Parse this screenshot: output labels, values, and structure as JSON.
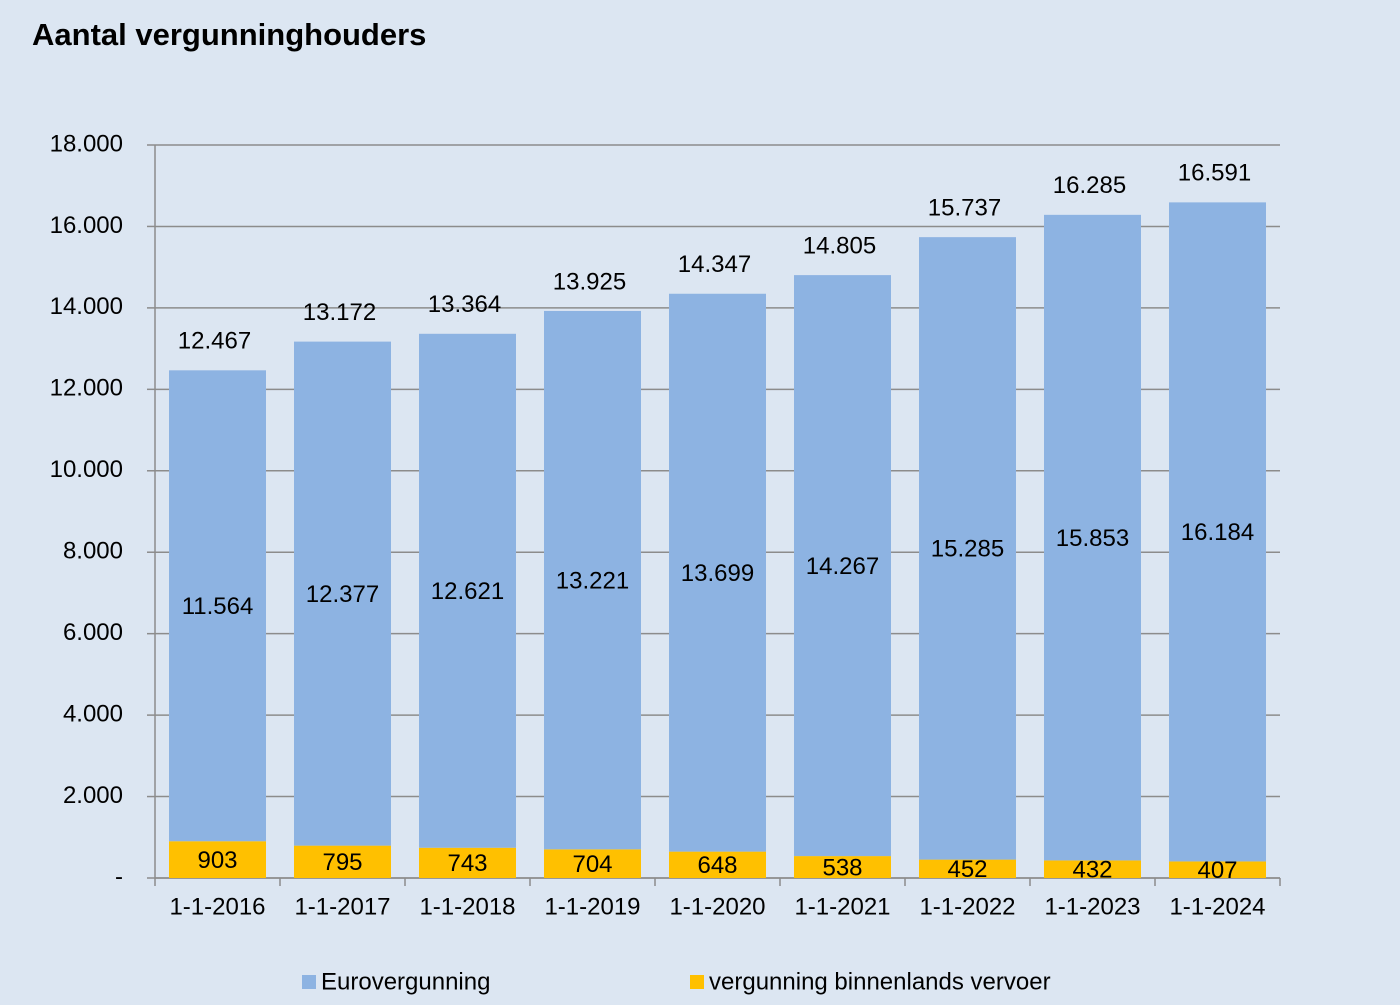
{
  "chart_data": {
    "type": "stacked_bar",
    "title": "Aantal vergunninghouders",
    "categories": [
      "1-1-2016",
      "1-1-2017",
      "1-1-2018",
      "1-1-2019",
      "1-1-2020",
      "1-1-2021",
      "1-1-2022",
      "1-1-2023",
      "1-1-2024"
    ],
    "series": [
      {
        "name": "Eurovergunning",
        "color": "#8db3e2",
        "values": [
          11564,
          12377,
          12621,
          13221,
          13699,
          14267,
          15285,
          15853,
          16184
        ],
        "value_labels": [
          "11.564",
          "12.377",
          "12.621",
          "13.221",
          "13.699",
          "14.267",
          "15.285",
          "15.853",
          "16.184"
        ]
      },
      {
        "name": "vergunning binnenlands vervoer",
        "color": "#ffc000",
        "values": [
          903,
          795,
          743,
          704,
          648,
          538,
          452,
          432,
          407
        ]
      }
    ],
    "totals": {
      "values": [
        12467,
        13172,
        13364,
        13925,
        14347,
        14805,
        15737,
        16285,
        16591
      ],
      "value_labels": [
        "12.467",
        "13.172",
        "13.364",
        "13.925",
        "14.347",
        "14.805",
        "15.737",
        "16.285",
        "16.591"
      ]
    },
    "ylim": [
      0,
      18000
    ],
    "yticks": [
      {
        "value": 0,
        "label": "-"
      },
      {
        "value": 2000,
        "label": "2.000"
      },
      {
        "value": 4000,
        "label": "4.000"
      },
      {
        "value": 6000,
        "label": "6.000"
      },
      {
        "value": 8000,
        "label": "8.000"
      },
      {
        "value": 10000,
        "label": "10.000"
      },
      {
        "value": 12000,
        "label": "12.000"
      },
      {
        "value": 14000,
        "label": "14.000"
      },
      {
        "value": 16000,
        "label": "16.000"
      },
      {
        "value": 18000,
        "label": "18.000"
      }
    ],
    "grid": true,
    "legend": "bottom"
  }
}
